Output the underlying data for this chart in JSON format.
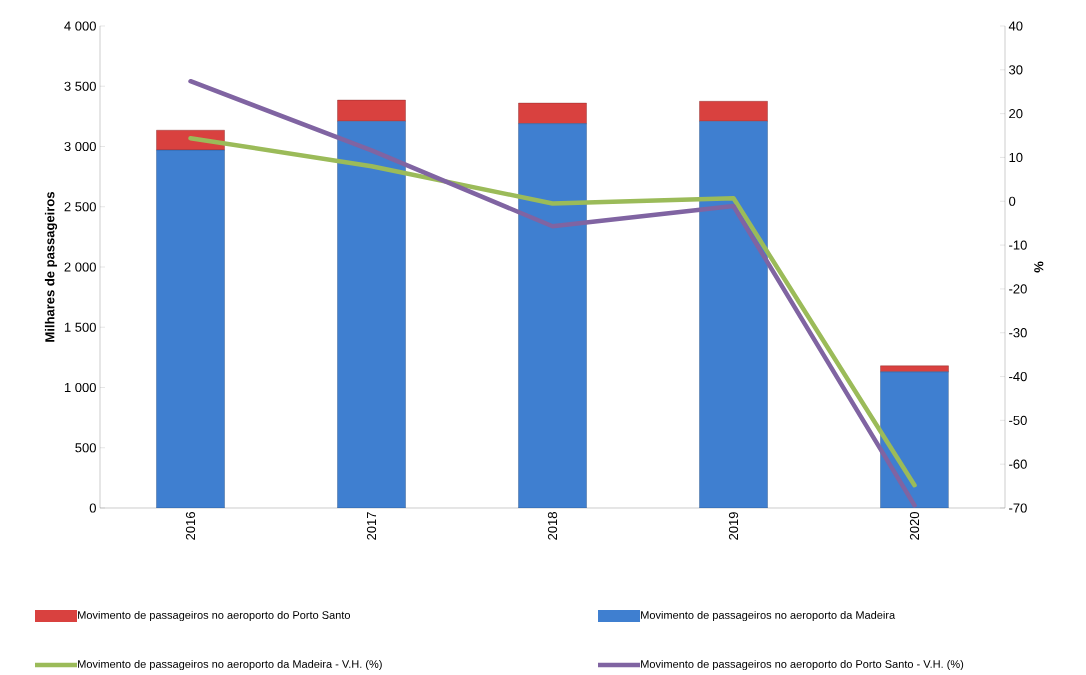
{
  "chart_data": {
    "type": "bar",
    "stacked": true,
    "ylabel": "Milhares de passageiros",
    "y2label": "%",
    "categories": [
      "2016",
      "2017",
      "2018",
      "2019",
      "2020"
    ],
    "series": [
      {
        "name": "Movimento de passageiros no aeroporto da Madeira",
        "color": "#3f7fd0",
        "values": [
          2970,
          3210,
          3190,
          3210,
          1130
        ]
      },
      {
        "name": "Movimento de passageiros no aeroporto do Porto Santo",
        "color": "#d9413f",
        "values": [
          165,
          175,
          170,
          165,
          50
        ]
      },
      {
        "name": "Movimento de passageiros no aeroporto da Madeira - V.H. (%)",
        "type": "line",
        "axis": "y2",
        "color": "#9bbb59",
        "values": [
          14.4,
          8,
          -0.5,
          0.7,
          -64.8
        ]
      },
      {
        "name": "Movimento de passageiros no aeroporto do Porto Santo - V.H. (%)",
        "type": "line",
        "axis": "y2",
        "color": "#8064a2",
        "values": [
          27.4,
          11.6,
          -5.7,
          -1.1,
          -69.4
        ]
      }
    ],
    "ylim": [
      0,
      4000
    ],
    "yticks": [
      0,
      {
        "value": 500,
        "label": "500"
      },
      {
        "value": 1000,
        "label": "1 000"
      },
      {
        "value": 1500,
        "label": "1 500"
      },
      {
        "value": 2000,
        "label": "2 000"
      },
      {
        "value": 2500,
        "label": "2 500"
      },
      {
        "value": 3000,
        "label": "3 000"
      },
      {
        "value": 3500,
        "label": "3 500"
      },
      {
        "value": 4000,
        "label": "4 000"
      }
    ],
    "y2lim": [
      -70,
      40
    ],
    "y2ticks": [
      -70,
      -60,
      -50,
      -40,
      -30,
      -20,
      -10,
      0,
      10,
      20,
      30,
      40
    ],
    "legend": "bottom"
  }
}
